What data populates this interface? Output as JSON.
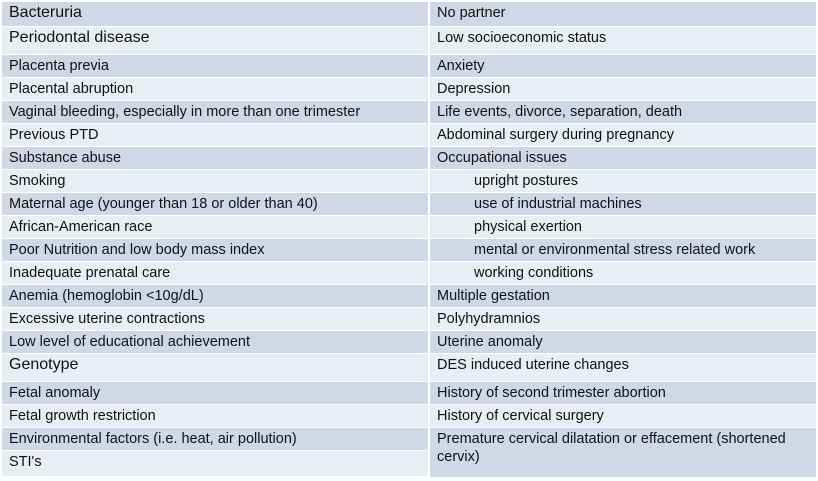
{
  "table": {
    "left": [
      "Bacteruria",
      "Periodontal disease",
      "Placenta previa",
      "Placental abruption",
      "Vaginal bleeding, especially in more than one trimester",
      "Previous PTD",
      "Substance abuse",
      "Smoking",
      "Maternal age (younger than 18 or older than 40)",
      "African-American race",
      "Poor Nutrition and low body mass index",
      "Inadequate prenatal care",
      "Anemia (hemoglobin <10g/dL)",
      "Excessive uterine contractions",
      "Low level of educational achievement",
      "Genotype",
      "Fetal anomaly",
      "Fetal growth restriction",
      "Environmental factors (i.e. heat, air pollution)",
      "STI's"
    ],
    "right": [
      "No partner",
      "Low socioeconomic status",
      "Anxiety",
      "Depression",
      "Life events, divorce, separation, death",
      "Abdominal surgery during pregnancy",
      "Occupational issues",
      "upright postures",
      "use of industrial machines",
      "physical exertion",
      "mental  or environmental stress related work",
      "working conditions",
      "Multiple gestation",
      "Polyhydramnios",
      "Uterine anomaly",
      "DES induced uterine changes",
      "History of second trimester abortion",
      "History of cervical surgery",
      "Premature cervical dilatation or effacement (shortened cervix)"
    ]
  }
}
